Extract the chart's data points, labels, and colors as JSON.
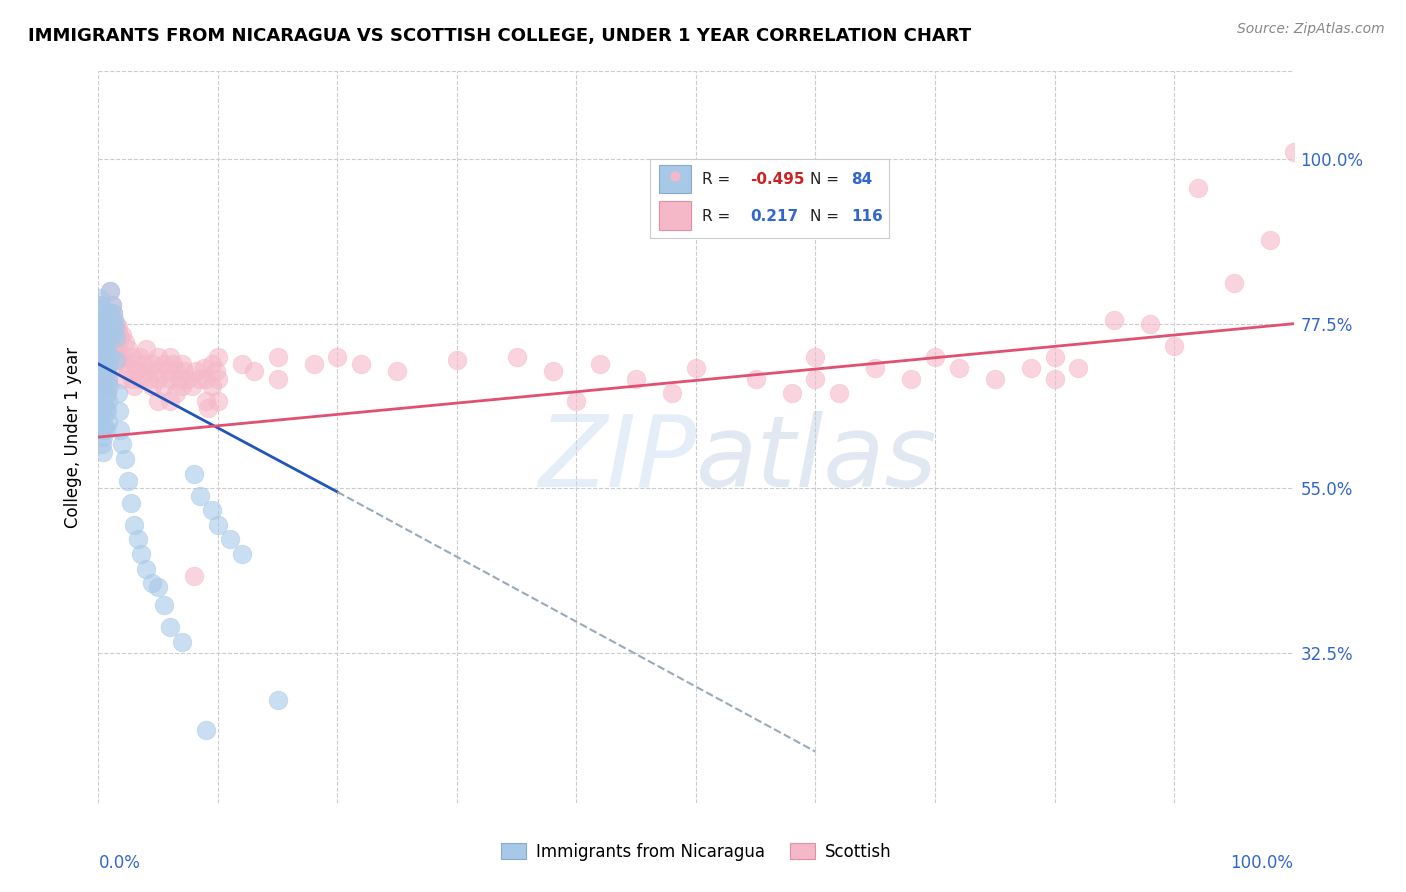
{
  "title": "IMMIGRANTS FROM NICARAGUA VS SCOTTISH COLLEGE, UNDER 1 YEAR CORRELATION CHART",
  "source": "Source: ZipAtlas.com",
  "ylabel": "College, Under 1 year",
  "ytick_labels": [
    "100.0%",
    "77.5%",
    "55.0%",
    "32.5%"
  ],
  "ytick_values": [
    1.0,
    0.775,
    0.55,
    0.325
  ],
  "xlim": [
    0.0,
    1.0
  ],
  "ylim": [
    0.12,
    1.12
  ],
  "watermark": "ZIPatlas",
  "blue_line": {
    "x0": 0.0,
    "y0": 0.72,
    "x1": 0.2,
    "y1": 0.545
  },
  "blue_line_ext": {
    "x0": 0.2,
    "y0": 0.545,
    "x1": 0.6,
    "y1": 0.19
  },
  "pink_line": {
    "x0": 0.0,
    "y0": 0.62,
    "x1": 1.0,
    "y1": 0.775
  },
  "blue_scatter": [
    [
      0.001,
      0.81
    ],
    [
      0.001,
      0.775
    ],
    [
      0.001,
      0.74
    ],
    [
      0.001,
      0.71
    ],
    [
      0.001,
      0.695
    ],
    [
      0.002,
      0.8
    ],
    [
      0.002,
      0.775
    ],
    [
      0.002,
      0.745
    ],
    [
      0.002,
      0.71
    ],
    [
      0.002,
      0.68
    ],
    [
      0.002,
      0.66
    ],
    [
      0.002,
      0.64
    ],
    [
      0.003,
      0.795
    ],
    [
      0.003,
      0.77
    ],
    [
      0.003,
      0.74
    ],
    [
      0.003,
      0.71
    ],
    [
      0.003,
      0.68
    ],
    [
      0.003,
      0.655
    ],
    [
      0.003,
      0.63
    ],
    [
      0.003,
      0.61
    ],
    [
      0.004,
      0.785
    ],
    [
      0.004,
      0.76
    ],
    [
      0.004,
      0.73
    ],
    [
      0.004,
      0.7
    ],
    [
      0.004,
      0.67
    ],
    [
      0.004,
      0.645
    ],
    [
      0.004,
      0.62
    ],
    [
      0.004,
      0.6
    ],
    [
      0.005,
      0.78
    ],
    [
      0.005,
      0.755
    ],
    [
      0.005,
      0.725
    ],
    [
      0.005,
      0.695
    ],
    [
      0.005,
      0.665
    ],
    [
      0.005,
      0.635
    ],
    [
      0.006,
      0.75
    ],
    [
      0.006,
      0.72
    ],
    [
      0.006,
      0.69
    ],
    [
      0.006,
      0.66
    ],
    [
      0.006,
      0.63
    ],
    [
      0.007,
      0.74
    ],
    [
      0.007,
      0.71
    ],
    [
      0.007,
      0.68
    ],
    [
      0.007,
      0.655
    ],
    [
      0.008,
      0.73
    ],
    [
      0.008,
      0.7
    ],
    [
      0.008,
      0.67
    ],
    [
      0.008,
      0.64
    ],
    [
      0.009,
      0.72
    ],
    [
      0.009,
      0.69
    ],
    [
      0.01,
      0.82
    ],
    [
      0.01,
      0.79
    ],
    [
      0.01,
      0.76
    ],
    [
      0.01,
      0.73
    ],
    [
      0.011,
      0.8
    ],
    [
      0.011,
      0.77
    ],
    [
      0.012,
      0.79
    ],
    [
      0.012,
      0.76
    ],
    [
      0.013,
      0.78
    ],
    [
      0.014,
      0.77
    ],
    [
      0.015,
      0.755
    ],
    [
      0.015,
      0.725
    ],
    [
      0.016,
      0.68
    ],
    [
      0.017,
      0.655
    ],
    [
      0.018,
      0.63
    ],
    [
      0.02,
      0.61
    ],
    [
      0.022,
      0.59
    ],
    [
      0.025,
      0.56
    ],
    [
      0.027,
      0.53
    ],
    [
      0.03,
      0.5
    ],
    [
      0.033,
      0.48
    ],
    [
      0.036,
      0.46
    ],
    [
      0.04,
      0.44
    ],
    [
      0.045,
      0.42
    ],
    [
      0.05,
      0.415
    ],
    [
      0.055,
      0.39
    ],
    [
      0.06,
      0.36
    ],
    [
      0.07,
      0.34
    ],
    [
      0.08,
      0.57
    ],
    [
      0.085,
      0.54
    ],
    [
      0.09,
      0.22
    ],
    [
      0.095,
      0.52
    ],
    [
      0.1,
      0.5
    ],
    [
      0.11,
      0.48
    ],
    [
      0.12,
      0.46
    ],
    [
      0.15,
      0.26
    ]
  ],
  "pink_scatter": [
    [
      0.001,
      0.775
    ],
    [
      0.002,
      0.8
    ],
    [
      0.002,
      0.775
    ],
    [
      0.002,
      0.745
    ],
    [
      0.003,
      0.78
    ],
    [
      0.003,
      0.755
    ],
    [
      0.003,
      0.725
    ],
    [
      0.004,
      0.77
    ],
    [
      0.004,
      0.74
    ],
    [
      0.004,
      0.71
    ],
    [
      0.005,
      0.76
    ],
    [
      0.005,
      0.73
    ],
    [
      0.005,
      0.7
    ],
    [
      0.006,
      0.75
    ],
    [
      0.006,
      0.72
    ],
    [
      0.006,
      0.69
    ],
    [
      0.007,
      0.74
    ],
    [
      0.007,
      0.71
    ],
    [
      0.007,
      0.68
    ],
    [
      0.008,
      0.73
    ],
    [
      0.008,
      0.7
    ],
    [
      0.009,
      0.72
    ],
    [
      0.01,
      0.82
    ],
    [
      0.01,
      0.79
    ],
    [
      0.01,
      0.76
    ],
    [
      0.011,
      0.8
    ],
    [
      0.011,
      0.77
    ],
    [
      0.012,
      0.79
    ],
    [
      0.012,
      0.76
    ],
    [
      0.013,
      0.775
    ],
    [
      0.013,
      0.745
    ],
    [
      0.014,
      0.77
    ],
    [
      0.014,
      0.74
    ],
    [
      0.015,
      0.775
    ],
    [
      0.015,
      0.745
    ],
    [
      0.016,
      0.77
    ],
    [
      0.016,
      0.74
    ],
    [
      0.017,
      0.76
    ],
    [
      0.018,
      0.755
    ],
    [
      0.018,
      0.725
    ],
    [
      0.02,
      0.76
    ],
    [
      0.02,
      0.73
    ],
    [
      0.02,
      0.7
    ],
    [
      0.022,
      0.75
    ],
    [
      0.022,
      0.72
    ],
    [
      0.025,
      0.74
    ],
    [
      0.025,
      0.71
    ],
    [
      0.028,
      0.73
    ],
    [
      0.028,
      0.7
    ],
    [
      0.03,
      0.72
    ],
    [
      0.03,
      0.69
    ],
    [
      0.032,
      0.71
    ],
    [
      0.035,
      0.73
    ],
    [
      0.035,
      0.7
    ],
    [
      0.038,
      0.72
    ],
    [
      0.04,
      0.74
    ],
    [
      0.04,
      0.71
    ],
    [
      0.042,
      0.7
    ],
    [
      0.045,
      0.72
    ],
    [
      0.045,
      0.69
    ],
    [
      0.048,
      0.71
    ],
    [
      0.05,
      0.73
    ],
    [
      0.05,
      0.7
    ],
    [
      0.05,
      0.67
    ],
    [
      0.055,
      0.72
    ],
    [
      0.055,
      0.69
    ],
    [
      0.058,
      0.71
    ],
    [
      0.06,
      0.73
    ],
    [
      0.06,
      0.7
    ],
    [
      0.06,
      0.67
    ],
    [
      0.062,
      0.72
    ],
    [
      0.065,
      0.71
    ],
    [
      0.065,
      0.68
    ],
    [
      0.068,
      0.7
    ],
    [
      0.07,
      0.72
    ],
    [
      0.07,
      0.69
    ],
    [
      0.072,
      0.71
    ],
    [
      0.075,
      0.7
    ],
    [
      0.078,
      0.69
    ],
    [
      0.08,
      0.43
    ],
    [
      0.082,
      0.71
    ],
    [
      0.085,
      0.7
    ],
    [
      0.088,
      0.715
    ],
    [
      0.09,
      0.7
    ],
    [
      0.09,
      0.67
    ],
    [
      0.092,
      0.66
    ],
    [
      0.095,
      0.72
    ],
    [
      0.095,
      0.69
    ],
    [
      0.098,
      0.71
    ],
    [
      0.1,
      0.73
    ],
    [
      0.1,
      0.7
    ],
    [
      0.1,
      0.67
    ],
    [
      0.12,
      0.72
    ],
    [
      0.13,
      0.71
    ],
    [
      0.15,
      0.73
    ],
    [
      0.15,
      0.7
    ],
    [
      0.18,
      0.72
    ],
    [
      0.2,
      0.73
    ],
    [
      0.22,
      0.72
    ],
    [
      0.25,
      0.71
    ],
    [
      0.3,
      0.725
    ],
    [
      0.35,
      0.73
    ],
    [
      0.38,
      0.71
    ],
    [
      0.4,
      0.67
    ],
    [
      0.42,
      0.72
    ],
    [
      0.45,
      0.7
    ],
    [
      0.48,
      0.68
    ],
    [
      0.5,
      0.715
    ],
    [
      0.55,
      0.7
    ],
    [
      0.58,
      0.68
    ],
    [
      0.6,
      0.73
    ],
    [
      0.6,
      0.7
    ],
    [
      0.62,
      0.68
    ],
    [
      0.65,
      0.715
    ],
    [
      0.68,
      0.7
    ],
    [
      0.7,
      0.73
    ],
    [
      0.72,
      0.715
    ],
    [
      0.75,
      0.7
    ],
    [
      0.78,
      0.715
    ],
    [
      0.8,
      0.73
    ],
    [
      0.8,
      0.7
    ],
    [
      0.82,
      0.715
    ],
    [
      0.85,
      0.78
    ],
    [
      0.88,
      0.775
    ],
    [
      0.9,
      0.745
    ],
    [
      0.92,
      0.96
    ],
    [
      0.95,
      0.83
    ],
    [
      0.98,
      0.89
    ],
    [
      1.0,
      1.01
    ]
  ]
}
